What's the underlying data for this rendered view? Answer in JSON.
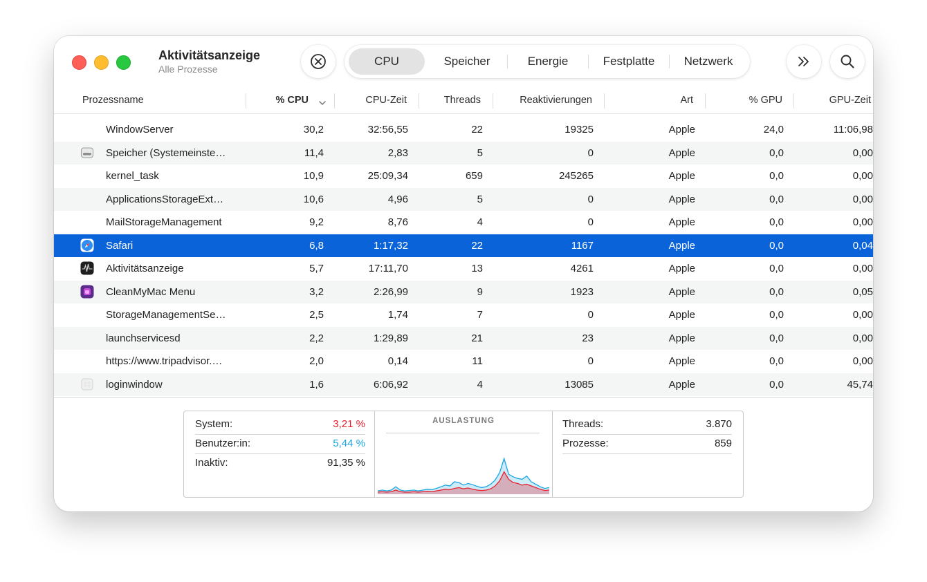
{
  "window": {
    "title": "Aktivitätsanzeige",
    "subtitle": "Alle Prozesse"
  },
  "toolbar": {
    "stop_icon": "xmark-circle-icon",
    "tabs": [
      "CPU",
      "Speicher",
      "Energie",
      "Festplatte",
      "Netzwerk"
    ],
    "active_tab": "CPU",
    "more_icon": "chevron-double-right-icon",
    "search_icon": "magnifyingglass-icon"
  },
  "table": {
    "columns": [
      "Prozessname",
      "% CPU",
      "CPU-Zeit",
      "Threads",
      "Reaktivierungen",
      "Art",
      "% GPU",
      "GPU-Zeit"
    ],
    "sorted_column": "% CPU",
    "sort_direction": "descending",
    "rows": [
      {
        "icon": "",
        "name": "WindowServer",
        "cpu": "30,2",
        "cpu_time": "32:56,55",
        "threads": "22",
        "wakeups": "19325",
        "kind": "Apple",
        "gpu": "24,0",
        "gpu_time": "11:06,98"
      },
      {
        "icon": "disk-icon",
        "name": "Speicher (Systemeinste…",
        "cpu": "11,4",
        "cpu_time": "2,83",
        "threads": "5",
        "wakeups": "0",
        "kind": "Apple",
        "gpu": "0,0",
        "gpu_time": "0,00"
      },
      {
        "icon": "",
        "name": "kernel_task",
        "cpu": "10,9",
        "cpu_time": "25:09,34",
        "threads": "659",
        "wakeups": "245265",
        "kind": "Apple",
        "gpu": "0,0",
        "gpu_time": "0,00"
      },
      {
        "icon": "",
        "name": "ApplicationsStorageExt…",
        "cpu": "10,6",
        "cpu_time": "4,96",
        "threads": "5",
        "wakeups": "0",
        "kind": "Apple",
        "gpu": "0,0",
        "gpu_time": "0,00"
      },
      {
        "icon": "",
        "name": "MailStorageManagement",
        "cpu": "9,2",
        "cpu_time": "8,76",
        "threads": "4",
        "wakeups": "0",
        "kind": "Apple",
        "gpu": "0,0",
        "gpu_time": "0,00"
      },
      {
        "icon": "safari-icon",
        "name": "Safari",
        "cpu": "6,8",
        "cpu_time": "1:17,32",
        "threads": "22",
        "wakeups": "1167",
        "kind": "Apple",
        "gpu": "0,0",
        "gpu_time": "0,04",
        "selected": true
      },
      {
        "icon": "activity-monitor-icon",
        "name": "Aktivitätsanzeige",
        "cpu": "5,7",
        "cpu_time": "17:11,70",
        "threads": "13",
        "wakeups": "4261",
        "kind": "Apple",
        "gpu": "0,0",
        "gpu_time": "0,00"
      },
      {
        "icon": "cleanmymac-icon",
        "name": "CleanMyMac Menu",
        "cpu": "3,2",
        "cpu_time": "2:26,99",
        "threads": "9",
        "wakeups": "1923",
        "kind": "Apple",
        "gpu": "0,0",
        "gpu_time": "0,05"
      },
      {
        "icon": "",
        "name": "StorageManagementSe…",
        "cpu": "2,5",
        "cpu_time": "1,74",
        "threads": "7",
        "wakeups": "0",
        "kind": "Apple",
        "gpu": "0,0",
        "gpu_time": "0,00"
      },
      {
        "icon": "",
        "name": "launchservicesd",
        "cpu": "2,2",
        "cpu_time": "1:29,89",
        "threads": "21",
        "wakeups": "23",
        "kind": "Apple",
        "gpu": "0,0",
        "gpu_time": "0,00"
      },
      {
        "icon": "",
        "name": "https://www.tripadvisor.…",
        "cpu": "2,0",
        "cpu_time": "0,14",
        "threads": "11",
        "wakeups": "0",
        "kind": "Apple",
        "gpu": "0,0",
        "gpu_time": "0,00"
      },
      {
        "icon": "generic-app-icon",
        "name": "loginwindow",
        "cpu": "1,6",
        "cpu_time": "6:06,92",
        "threads": "4",
        "wakeups": "13085",
        "kind": "Apple",
        "gpu": "0,0",
        "gpu_time": "45,74"
      }
    ]
  },
  "summary": {
    "system_label": "System:",
    "system_value": "3,21 %",
    "user_label": "Benutzer:in:",
    "user_value": "5,44 %",
    "idle_label": "Inaktiv:",
    "idle_value": "91,35 %",
    "chart_title": "AUSLASTUNG",
    "threads_label": "Threads:",
    "threads_value": "3.870",
    "processes_label": "Prozesse:",
    "processes_value": "859",
    "colors": {
      "system": "#e8202f",
      "user": "#1aa6e0"
    },
    "load_history": {
      "system": [
        0.5,
        0.6,
        0.5,
        0.6,
        1.0,
        0.6,
        0.5,
        0.5,
        0.6,
        0.5,
        0.6,
        0.7,
        0.6,
        0.8,
        1.0,
        1.2,
        1.1,
        1.4,
        1.6,
        1.3,
        1.5,
        1.2,
        1.0,
        0.9,
        1.0,
        1.3,
        2.0,
        3.2,
        5.4,
        3.6,
        2.8,
        2.6,
        2.2,
        2.4,
        2.0,
        1.6,
        1.2,
        0.9,
        1.0
      ],
      "user": [
        0.8,
        1.0,
        0.8,
        1.0,
        1.8,
        1.0,
        0.8,
        0.9,
        1.0,
        0.8,
        1.0,
        1.2,
        1.1,
        1.4,
        1.8,
        2.2,
        2.0,
        3.0,
        2.8,
        2.2,
        2.6,
        2.3,
        1.9,
        1.6,
        1.8,
        2.4,
        3.4,
        5.2,
        8.6,
        4.8,
        4.2,
        3.8,
        3.6,
        4.4,
        3.0,
        2.4,
        1.8,
        1.4,
        1.6
      ]
    }
  }
}
